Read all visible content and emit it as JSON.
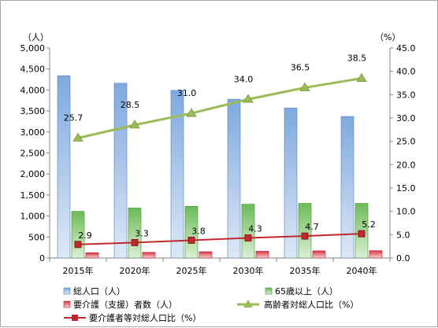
{
  "chart_data": {
    "type": "bar",
    "categories": [
      "2015年",
      "2020年",
      "2025年",
      "2030年",
      "2035年",
      "2040年"
    ],
    "y_left": {
      "unit": "（人）",
      "min": 0,
      "max": 5000,
      "step": 500,
      "ticks": [
        "0",
        "500",
        "1,000",
        "1,500",
        "2,000",
        "2,500",
        "3,000",
        "3,500",
        "4,000",
        "4,500",
        "5,000"
      ]
    },
    "y_right": {
      "unit": "（%）",
      "min": 0,
      "max": 45,
      "step": 5,
      "ticks": [
        "0.0",
        "5.0",
        "10.0",
        "15.0",
        "20.0",
        "25.0",
        "30.0",
        "35.0",
        "40.0",
        "45.0"
      ]
    },
    "series": [
      {
        "name": "総人口（人）",
        "kind": "bar",
        "axis": "left",
        "color": "#8eb4e3",
        "values": [
          4340,
          4160,
          3990,
          3780,
          3570,
          3370
        ]
      },
      {
        "name": "65歳以上（人）",
        "kind": "bar",
        "axis": "left",
        "color": "#7fc66b",
        "values": [
          1110,
          1190,
          1230,
          1280,
          1300,
          1300
        ]
      },
      {
        "name": "要介護（支援）者数（人）",
        "kind": "bar",
        "axis": "left",
        "color": "#e8505b",
        "values": [
          125,
          135,
          150,
          160,
          170,
          175
        ]
      },
      {
        "name": "高齢者対総人口比（%）",
        "kind": "line",
        "axis": "right",
        "color": "#9bbb59",
        "marker": "triangle",
        "values": [
          25.7,
          28.5,
          31.0,
          34.0,
          36.5,
          38.5
        ],
        "labels": [
          "25.7",
          "28.5",
          "31.0",
          "34.0",
          "36.5",
          "38.5"
        ]
      },
      {
        "name": "要介護者等対総人口比（%）",
        "kind": "line",
        "axis": "right",
        "color": "#c0282d",
        "marker": "square",
        "values": [
          2.9,
          3.3,
          3.8,
          4.3,
          4.7,
          5.2
        ],
        "labels": [
          "2.9",
          "3.3",
          "3.8",
          "4.3",
          "4.7",
          "5.2"
        ]
      }
    ],
    "grid": false,
    "legend_position": "bottom"
  }
}
